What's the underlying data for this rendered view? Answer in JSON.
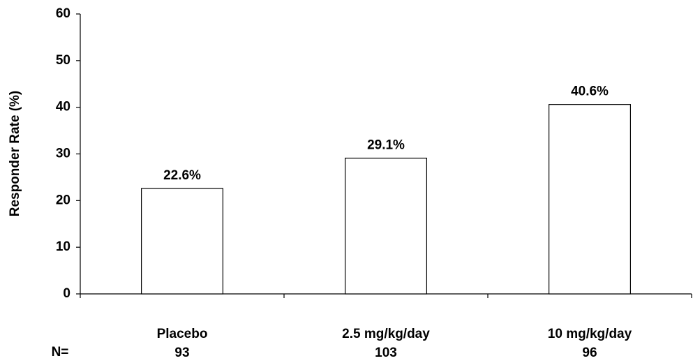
{
  "chart_data": {
    "type": "bar",
    "y_label": "Responder Rate (%)",
    "categories": [
      "Placebo",
      "2.5 mg/kg/day",
      "10 mg/kg/day"
    ],
    "n_label": "N=",
    "n_values": [
      93,
      103,
      96
    ],
    "values": [
      22.6,
      29.1,
      40.6
    ],
    "value_labels": [
      "22.6%",
      "29.1%",
      "40.6%"
    ],
    "color": "#ffffff",
    "ylim": [
      0,
      60
    ],
    "yticks": [
      0,
      10,
      20,
      30,
      40,
      50,
      60
    ],
    "grid": false
  }
}
